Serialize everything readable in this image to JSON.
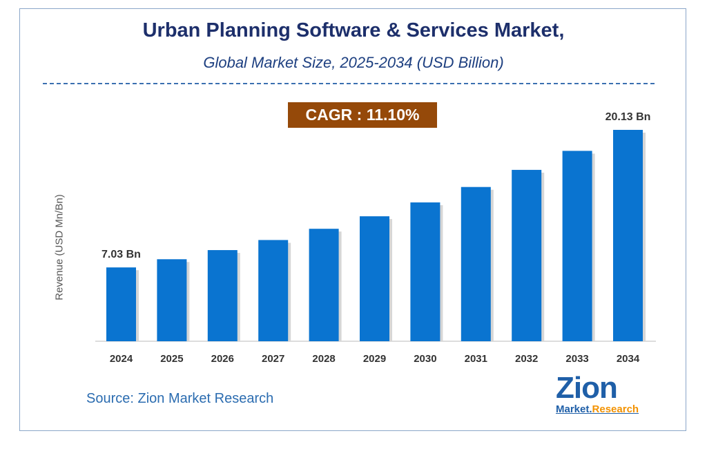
{
  "header": {
    "title": "Urban Planning Software & Services Market,",
    "subtitle": "Global Market Size, 2025-2034 (USD Billion)"
  },
  "cagr_label": "CAGR : 11.10%",
  "source": "Source: Zion Market Research",
  "logo": {
    "main": "Zion",
    "sub1": "Market.",
    "sub2": "Research",
    "colors": [
      "#1f5fa8",
      "#f39200"
    ]
  },
  "chart_data": {
    "type": "bar",
    "title": "Urban Planning Software & Services Market,",
    "subtitle": "Global Market Size, 2025-2034 (USD Billion)",
    "xlabel": "",
    "ylabel": "Revenue (USD Mn/Bn)",
    "categories": [
      "2024",
      "2025",
      "2026",
      "2027",
      "2028",
      "2029",
      "2030",
      "2031",
      "2032",
      "2033",
      "2034"
    ],
    "values": [
      7.03,
      7.81,
      8.68,
      9.64,
      10.71,
      11.9,
      13.22,
      14.69,
      16.32,
      18.13,
      20.13
    ],
    "data_labels": {
      "0": "7.03 Bn",
      "10": "20.13 Bn"
    },
    "ylim": [
      0,
      20.13
    ],
    "grid": false,
    "bar_color": "#0a74d0"
  }
}
